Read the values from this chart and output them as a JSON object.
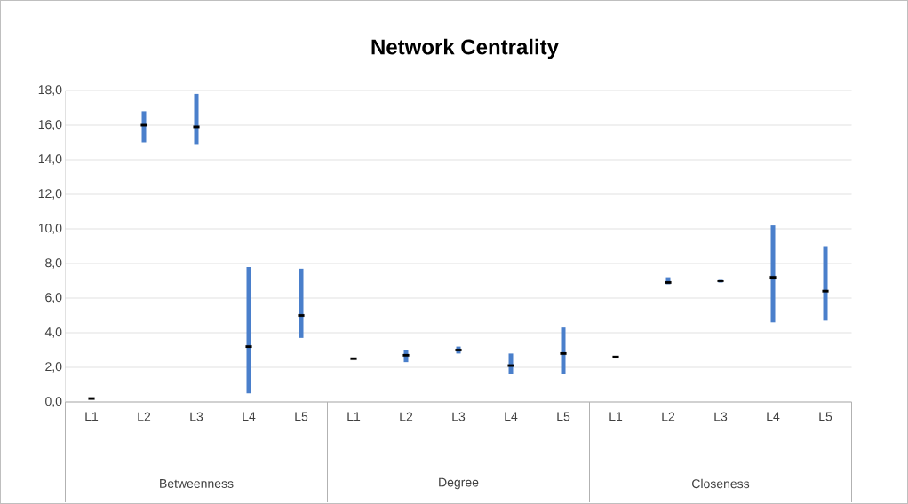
{
  "chart_data": {
    "type": "scatter",
    "title": "Network Centrality",
    "categories": [
      "L1",
      "L2",
      "L3",
      "L4",
      "L5",
      "L1",
      "L2",
      "L3",
      "L4",
      "L5",
      "L1",
      "L2",
      "L3",
      "L4",
      "L5"
    ],
    "values": [
      0.2,
      16.0,
      15.9,
      3.2,
      5.0,
      2.5,
      2.7,
      3.0,
      2.1,
      2.8,
      2.6,
      6.9,
      7.0,
      7.2,
      6.4
    ],
    "errors": [
      null,
      [
        15.0,
        16.8
      ],
      [
        14.9,
        17.8
      ],
      [
        0.5,
        7.8
      ],
      [
        3.7,
        7.7
      ],
      null,
      [
        2.3,
        3.0
      ],
      [
        2.8,
        3.2
      ],
      [
        1.6,
        2.8
      ],
      [
        1.6,
        4.3
      ],
      null,
      [
        6.8,
        7.2
      ],
      [
        6.9,
        7.1
      ],
      [
        4.6,
        10.2
      ],
      [
        4.7,
        9.0
      ]
    ],
    "color": "#000000",
    "ylim": [
      0,
      18
    ],
    "yticks": [
      {
        "value": 0,
        "label": "0,0"
      },
      {
        "value": 2,
        "label": "2,0"
      },
      {
        "value": 4,
        "label": "4,0"
      },
      {
        "value": 6,
        "label": "6,0"
      },
      {
        "value": 8,
        "label": "8,0"
      },
      {
        "value": 10,
        "label": "10,0"
      },
      {
        "value": 12,
        "label": "12,0"
      },
      {
        "value": 14,
        "label": "14,0"
      },
      {
        "value": 16,
        "label": "16,0"
      },
      {
        "value": 18,
        "label": "18,0"
      }
    ],
    "grid": "y",
    "annotations": [
      "Betweenness",
      "Degree",
      "Closeness"
    ]
  }
}
